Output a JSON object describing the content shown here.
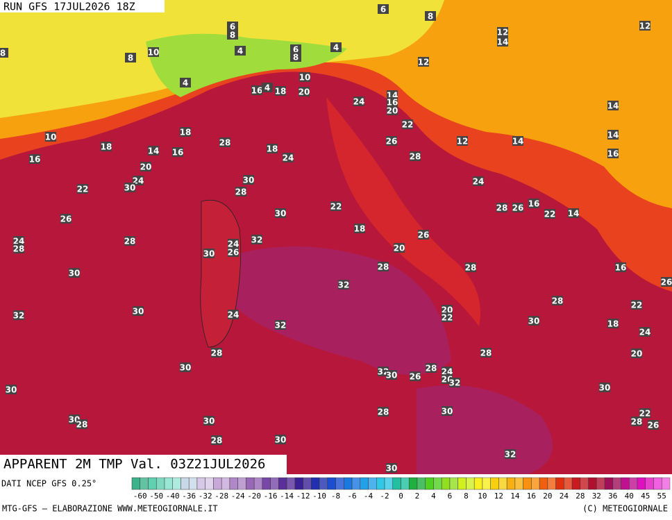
{
  "header": {
    "run": "RUN GFS 17JUL2026 18Z"
  },
  "footer": {
    "title": "APPARENT 2M TMP Val. 03Z21JUL2026",
    "source": "DATI NCEP GFS 0.25°",
    "credit_left": "MTG-GFS — ELABORAZIONE WWW.METEOGIORNALE.IT",
    "credit_right": "(C) METEOGIORNALE"
  },
  "legend": {
    "levels": [
      -60,
      -50,
      -40,
      -36,
      -32,
      -28,
      -24,
      -20,
      -16,
      -14,
      -12,
      -10,
      -8,
      -6,
      -4,
      -2,
      0,
      2,
      4,
      6,
      8,
      10,
      12,
      14,
      16,
      20,
      24,
      28,
      32,
      36,
      40,
      45,
      55
    ]
  },
  "map_labels": [
    6,
    8,
    12,
    14,
    12,
    8,
    8,
    10,
    6,
    8,
    4,
    6,
    8,
    4,
    12,
    10,
    4,
    16,
    4,
    18,
    20,
    14,
    16,
    20,
    24,
    22,
    14,
    14,
    12,
    14,
    16,
    10,
    18,
    16,
    14,
    16,
    18,
    28,
    18,
    24,
    26,
    28,
    20,
    24,
    30,
    22,
    30,
    28,
    24,
    28,
    26,
    16,
    22,
    14,
    30,
    22,
    18,
    26,
    28,
    32,
    24,
    26,
    30,
    26,
    20,
    28,
    24,
    28,
    30,
    28,
    16,
    32,
    26,
    28,
    22,
    30,
    32,
    24,
    32,
    20,
    22,
    30,
    18,
    24,
    28,
    28,
    20,
    30,
    32,
    30,
    26,
    28,
    24,
    26,
    32,
    30,
    30,
    30,
    28,
    22,
    28,
    26,
    30,
    28,
    30,
    28,
    30,
    32,
    30
  ]
}
